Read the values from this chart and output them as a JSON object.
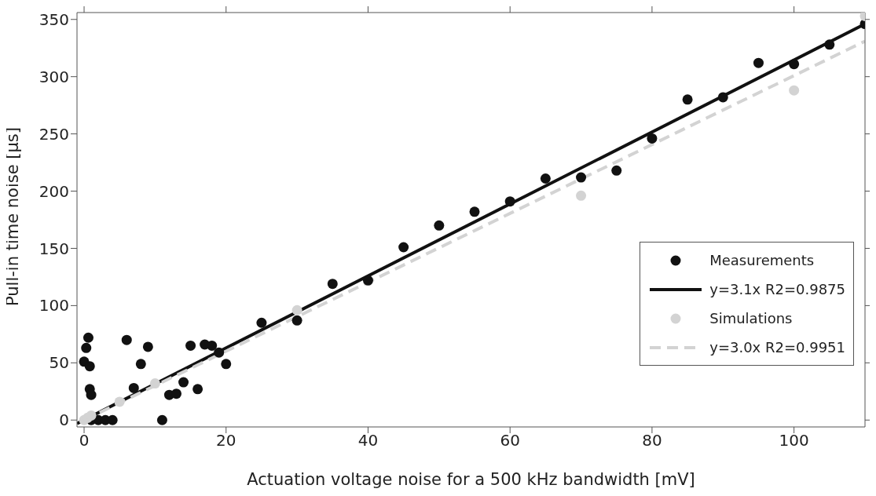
{
  "chart_data": {
    "type": "scatter",
    "xlabel": "Actuation voltage noise for a 500 kHz bandwidth [mV]",
    "ylabel": "Pull-in time noise [µs]",
    "xlim": [
      -1,
      110
    ],
    "ylim": [
      -6,
      356
    ],
    "xticks": [
      0,
      20,
      40,
      60,
      80,
      100
    ],
    "yticks": [
      0,
      50,
      100,
      150,
      200,
      250,
      300,
      350
    ],
    "legend": "right",
    "series": [
      {
        "name": "Measurements",
        "marker": "circle",
        "color": "#111111",
        "x": [
          0,
          0.3,
          0.6,
          0.8,
          0.8,
          1,
          1,
          2,
          3,
          4,
          6,
          7,
          8,
          9,
          11,
          12,
          13,
          14,
          15,
          16,
          17,
          18,
          19,
          20,
          25,
          30,
          35,
          40,
          45,
          50,
          55,
          60,
          65,
          70,
          75,
          80,
          85,
          90,
          95,
          100,
          105,
          110
        ],
        "values": [
          51,
          63,
          72,
          47,
          27,
          22,
          0,
          0,
          0,
          0,
          70,
          28,
          49,
          64,
          0,
          22,
          23,
          33,
          65,
          27,
          66,
          65,
          59,
          49,
          85,
          87,
          119,
          122,
          151,
          170,
          182,
          191,
          211,
          212,
          218,
          246,
          280,
          282,
          312,
          311,
          328,
          346
        ]
      },
      {
        "name": "y=3.1x R2=0.9875",
        "type": "line",
        "color": "#111111",
        "line_style": "solid",
        "x": [
          -1,
          110
        ],
        "values": [
          -3,
          346
        ]
      },
      {
        "name": "Simulations",
        "marker": "circle",
        "color": "#d3d3d3",
        "x": [
          0,
          0.5,
          1,
          5,
          10,
          30,
          70,
          100,
          110
        ],
        "values": [
          0,
          2,
          4,
          16,
          32,
          96,
          196,
          288,
          353
        ]
      },
      {
        "name": "y=3.0x R2=0.9951",
        "type": "line",
        "color": "#d3d3d3",
        "line_style": "dashed",
        "x": [
          0,
          110
        ],
        "values": [
          0,
          331
        ]
      }
    ]
  }
}
